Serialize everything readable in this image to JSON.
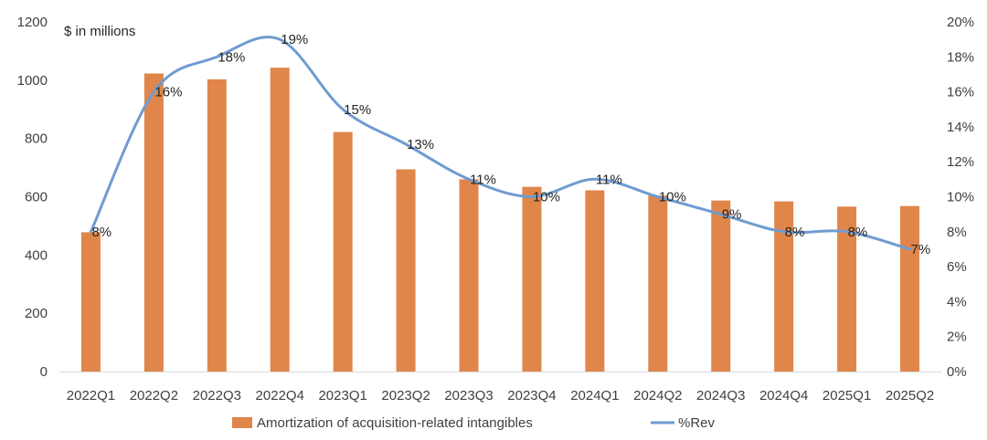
{
  "chart_data": {
    "type": "bar",
    "unit_label": "$ in millions",
    "categories": [
      "2022Q1",
      "2022Q2",
      "2022Q3",
      "2022Q4",
      "2023Q1",
      "2023Q2",
      "2023Q3",
      "2023Q4",
      "2024Q1",
      "2024Q2",
      "2024Q3",
      "2024Q4",
      "2025Q1",
      "2025Q2"
    ],
    "series": [
      {
        "name": "Amortization of acquisition-related intangibles",
        "type": "bar",
        "axis": "left",
        "color": "#E0864A",
        "values": [
          478,
          1023,
          1003,
          1043,
          822,
          694,
          660,
          634,
          622,
          604,
          587,
          584,
          566,
          568
        ]
      },
      {
        "name": "%Rev",
        "type": "line",
        "axis": "right",
        "color": "#6F9BD1",
        "smooth": true,
        "values": [
          8,
          16,
          18,
          19,
          15,
          13,
          11,
          10,
          11,
          10,
          9,
          8,
          8,
          7
        ],
        "labels": [
          "8%",
          "16%",
          "18%",
          "19%",
          "15%",
          "13%",
          "11%",
          "10%",
          "11%",
          "10%",
          "9%",
          "8%",
          "8%",
          "7%"
        ]
      }
    ],
    "y_left": {
      "min": 0,
      "max": 1200,
      "ticks": [
        "0",
        "200",
        "400",
        "600",
        "800",
        "1000",
        "1200"
      ]
    },
    "y_right": {
      "min": 0,
      "max": 20,
      "ticks": [
        "0%",
        "2%",
        "4%",
        "6%",
        "8%",
        "10%",
        "12%",
        "14%",
        "16%",
        "18%",
        "20%"
      ]
    },
    "grid": false,
    "legend": "bottom"
  }
}
